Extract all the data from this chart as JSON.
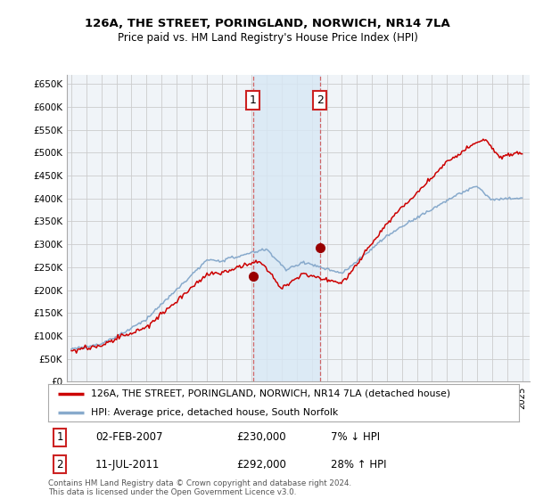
{
  "title1": "126A, THE STREET, PORINGLAND, NORWICH, NR14 7LA",
  "title2": "Price paid vs. HM Land Registry's House Price Index (HPI)",
  "ylabel_ticks": [
    "£0",
    "£50K",
    "£100K",
    "£150K",
    "£200K",
    "£250K",
    "£300K",
    "£350K",
    "£400K",
    "£450K",
    "£500K",
    "£550K",
    "£600K",
    "£650K"
  ],
  "ytick_values": [
    0,
    50000,
    100000,
    150000,
    200000,
    250000,
    300000,
    350000,
    400000,
    450000,
    500000,
    550000,
    600000,
    650000
  ],
  "ylim": [
    0,
    670000
  ],
  "xlim_start": 1994.7,
  "xlim_end": 2025.5,
  "transaction1_x": 2007.08,
  "transaction1_y": 230000,
  "transaction1_label": "1",
  "transaction2_x": 2011.53,
  "transaction2_y": 292000,
  "transaction2_label": "2",
  "legend_line1": "126A, THE STREET, PORINGLAND, NORWICH, NR14 7LA (detached house)",
  "legend_line2": "HPI: Average price, detached house, South Norfolk",
  "annotation1_date": "02-FEB-2007",
  "annotation1_price": "£230,000",
  "annotation1_hpi": "7% ↓ HPI",
  "annotation2_date": "11-JUL-2011",
  "annotation2_price": "£292,000",
  "annotation2_hpi": "28% ↑ HPI",
  "footer": "Contains HM Land Registry data © Crown copyright and database right 2024.\nThis data is licensed under the Open Government Licence v3.0.",
  "line_color_red": "#cc0000",
  "line_color_blue": "#88aacc",
  "background_color": "#ffffff",
  "plot_bg_color": "#f0f4f8",
  "grid_color": "#cccccc",
  "shade_color": "#d8e8f5",
  "annotation_box_color": "#cc2222",
  "marker_color": "#990000"
}
